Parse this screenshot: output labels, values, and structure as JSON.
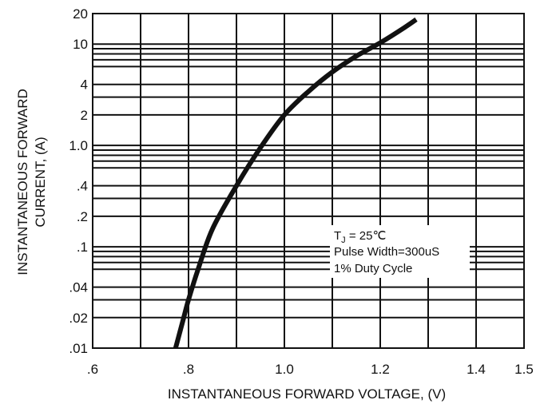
{
  "chart_data": {
    "type": "line",
    "title": "",
    "xlabel": "INSTANTANEOUS FORWARD VOLTAGE, (V)",
    "ylabel_lines": [
      "INSTANTANEOUS FORWARD",
      "CURRENT, (A)"
    ],
    "xlim": [
      0.6,
      1.5
    ],
    "ylim": [
      0.01,
      20
    ],
    "y_scale": "log",
    "grid": true,
    "x_ticks": [
      {
        "value": 0.6,
        "label": ".6"
      },
      {
        "value": 0.8,
        "label": ".8"
      },
      {
        "value": 1.0,
        "label": "1.0"
      },
      {
        "value": 1.2,
        "label": "1.2"
      },
      {
        "value": 1.4,
        "label": "1.4"
      },
      {
        "value": 1.5,
        "label": "1.5"
      }
    ],
    "x_gridlines": [
      0.7,
      0.8,
      0.9,
      1.0,
      1.1,
      1.2,
      1.3,
      1.4
    ],
    "y_ticks": [
      {
        "value": 0.01,
        "label": ".01"
      },
      {
        "value": 0.02,
        "label": ".02"
      },
      {
        "value": 0.04,
        "label": ".04"
      },
      {
        "value": 0.1,
        "label": ".1"
      },
      {
        "value": 0.2,
        "label": ".2"
      },
      {
        "value": 0.4,
        "label": ".4"
      },
      {
        "value": 1.0,
        "label": "1.0"
      },
      {
        "value": 2,
        "label": "2"
      },
      {
        "value": 4,
        "label": "4"
      },
      {
        "value": 10,
        "label": "10"
      },
      {
        "value": 20,
        "label": "20"
      }
    ],
    "y_gridlines": [
      0.02,
      0.03,
      0.04,
      0.06,
      0.07,
      0.08,
      0.09,
      0.1,
      0.2,
      0.3,
      0.4,
      0.6,
      0.7,
      0.8,
      0.9,
      1,
      2,
      3,
      4,
      6,
      7,
      8,
      9,
      10
    ],
    "series": [
      {
        "color": "#111111",
        "points": [
          {
            "x": 0.773,
            "y": 0.01
          },
          {
            "x": 0.79,
            "y": 0.02
          },
          {
            "x": 0.8,
            "y": 0.03
          },
          {
            "x": 0.82,
            "y": 0.06
          },
          {
            "x": 0.85,
            "y": 0.15
          },
          {
            "x": 0.9,
            "y": 0.4
          },
          {
            "x": 0.95,
            "y": 0.95
          },
          {
            "x": 1.0,
            "y": 2.0
          },
          {
            "x": 1.05,
            "y": 3.4
          },
          {
            "x": 1.1,
            "y": 5.3
          },
          {
            "x": 1.15,
            "y": 7.6
          },
          {
            "x": 1.2,
            "y": 10.3
          },
          {
            "x": 1.25,
            "y": 14.5
          },
          {
            "x": 1.275,
            "y": 17.5
          }
        ]
      }
    ],
    "annotations": [
      "T",
      "J",
      " = 25℃",
      "Pulse Width=300uS",
      "1% Duty Cycle"
    ]
  }
}
